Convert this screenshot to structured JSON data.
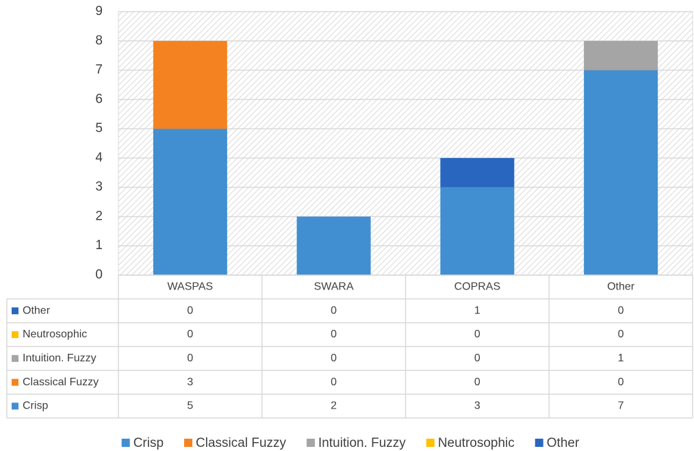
{
  "chart_data": {
    "type": "stacked-bar",
    "categories": [
      "WASPAS",
      "SWARA",
      "COPRAS",
      "Other"
    ],
    "series": [
      {
        "name": "Crisp",
        "color": "#418fd0",
        "values": [
          5,
          2,
          3,
          7
        ]
      },
      {
        "name": "Classical Fuzzy",
        "color": "#f58220",
        "values": [
          3,
          0,
          0,
          0
        ]
      },
      {
        "name": "Intuition. Fuzzy",
        "color": "#a5a5a5",
        "values": [
          0,
          0,
          0,
          1
        ]
      },
      {
        "name": "Neutrosophic",
        "color": "#ffc000",
        "values": [
          0,
          0,
          0,
          0
        ]
      },
      {
        "name": "Other",
        "color": "#2966bf",
        "values": [
          0,
          0,
          1,
          0
        ]
      }
    ],
    "ylim": [
      0,
      9
    ],
    "yticks": [
      0,
      1,
      2,
      3,
      4,
      5,
      6,
      7,
      8,
      9
    ],
    "grid": true,
    "legend": "bottom",
    "data_table": true
  }
}
